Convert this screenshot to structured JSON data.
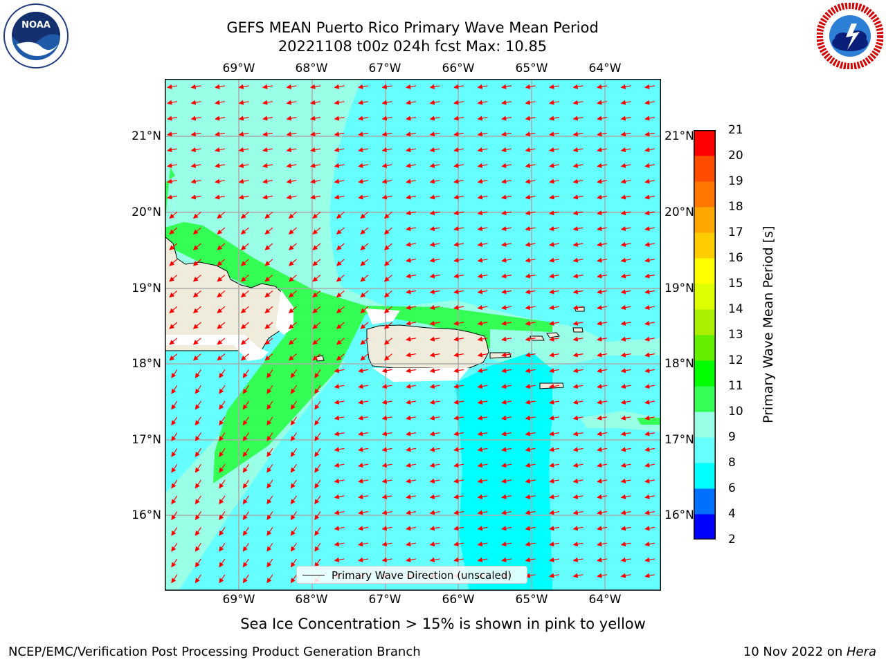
{
  "title": {
    "line1": "GEFS MEAN Puerto Rico Primary Wave Mean Period",
    "line2": "20221108 t00z 024h fcst   Max: 10.85"
  },
  "logos": {
    "noaa": {
      "name": "noaa-logo",
      "text": "NOAA",
      "ring_text": "NATIONAL OCEANIC AND ATMOSPHERIC ADMINISTRATION",
      "bottom_text": "U.S. DEPARTMENT OF COMMERCE"
    },
    "nws": {
      "name": "nws-logo",
      "ring_text": "NATIONAL WEATHER SERVICE"
    }
  },
  "map": {
    "lon_ticks": [
      "69°W",
      "68°W",
      "67°W",
      "66°W",
      "65°W",
      "64°W"
    ],
    "lat_ticks": [
      "21°N",
      "20°N",
      "19°N",
      "18°N",
      "17°N",
      "16°N"
    ],
    "extent": {
      "lon_min": -70.0,
      "lon_max": -63.25,
      "lat_min": 15.0,
      "lat_max": 21.75
    },
    "grid": true,
    "vector_color": "#ff0000",
    "land_color": "#efecdc",
    "features": [
      "Hispaniola",
      "Puerto Rico",
      "Virgin Islands"
    ]
  },
  "legend": {
    "label": "Primary Wave Direction (unscaled)",
    "placement": "bottom-center"
  },
  "colorbar": {
    "label": "Primary Wave Mean Period [s]",
    "ticks": [
      "21",
      "20",
      "19",
      "18",
      "17",
      "16",
      "15",
      "14",
      "13",
      "12",
      "11",
      "10",
      "9",
      "8",
      "6",
      "4",
      "2"
    ],
    "levels": [
      2,
      4,
      6,
      8,
      9,
      10,
      11,
      12,
      13,
      14,
      15,
      16,
      17,
      18,
      19,
      20,
      21
    ],
    "colors": [
      "#0000ff",
      "#0070ff",
      "#00ffff",
      "#66ffff",
      "#99ffe6",
      "#33ff55",
      "#00ff00",
      "#66ee00",
      "#aaee00",
      "#ddff00",
      "#ffff00",
      "#ffcc00",
      "#ffa500",
      "#ff7700",
      "#ff4d00",
      "#ff0000"
    ]
  },
  "chart_data": {
    "type": "heatmap",
    "title": "GEFS MEAN Puerto Rico Primary Wave Mean Period",
    "subtitle": "20221108 t00z 024h fcst   Max: 10.85",
    "xlabel": "",
    "ylabel": "",
    "x_ticks": [
      "69°W",
      "68°W",
      "67°W",
      "66°W",
      "65°W",
      "64°W"
    ],
    "y_ticks": [
      "21°N",
      "20°N",
      "19°N",
      "18°N",
      "17°N",
      "16°N"
    ],
    "max_value": 10.85,
    "colorbar_label": "Primary Wave Mean Period [s]",
    "colorbar_range": [
      2,
      21
    ],
    "vector_field": "Primary Wave Direction (unscaled)",
    "note": "Sea Ice Concentration > 15% is shown in pink to yellow"
  },
  "footnote": "Sea Ice Concentration > 15% is shown in pink to yellow",
  "credits": {
    "left": "NCEP/EMC/Verification Post Processing Product Generation Branch",
    "right_date": "10 Nov 2022 on ",
    "right_host": "Hera"
  }
}
